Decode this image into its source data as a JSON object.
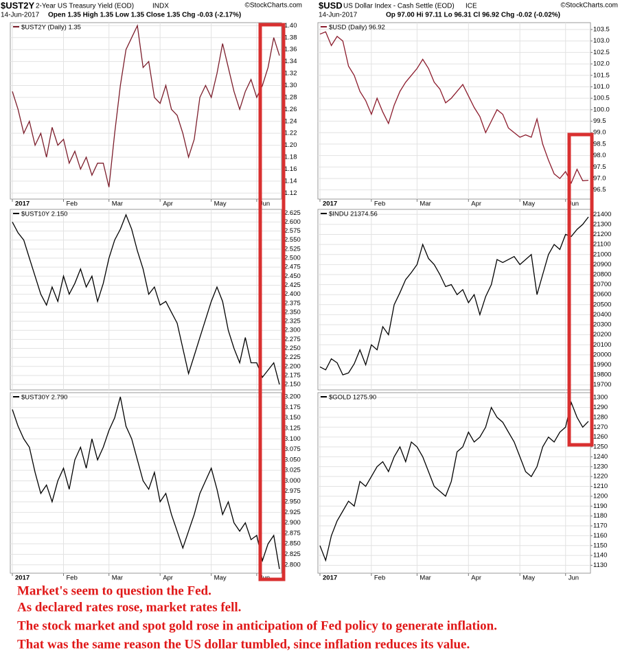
{
  "headers": [
    {
      "symbol": "$UST2Y",
      "name": "2-Year US Treasury Yield (EOD)",
      "exchange": "INDX",
      "source": "©StockCharts.com",
      "date": "14-Jun-2017",
      "quote": "Open 1.35  High 1.35  Low 1.35  Close 1.35  Chg -0.03 (-2.17%)"
    },
    {
      "symbol": "$USD",
      "name": "US Dollar Index - Cash Settle (EOD)",
      "exchange": "ICE",
      "source": "©StockCharts.com",
      "date": "14-Jun-2017",
      "quote": "Op 97.00  Hi 97.11  Lo 96.31  Cl 96.92  Chg -0.02 (-0.02%)"
    }
  ],
  "chart_data": [
    {
      "type": "line",
      "title": "$UST2Y (Daily) 1.35",
      "color": "#7b1c2a",
      "grid": true,
      "categories": [
        "2017",
        null,
        null,
        null,
        null,
        null,
        null,
        null,
        null,
        "Feb",
        null,
        null,
        null,
        null,
        null,
        null,
        null,
        "Mar",
        null,
        null,
        null,
        null,
        null,
        null,
        null,
        null,
        "Apr",
        null,
        null,
        null,
        null,
        null,
        null,
        null,
        null,
        "May",
        null,
        null,
        null,
        null,
        null,
        null,
        null,
        "Jun",
        null,
        null,
        null,
        null
      ],
      "values": [
        1.29,
        1.26,
        1.22,
        1.24,
        1.2,
        1.22,
        1.18,
        1.23,
        1.2,
        1.21,
        1.17,
        1.19,
        1.16,
        1.18,
        1.15,
        1.17,
        1.17,
        1.13,
        1.22,
        1.3,
        1.36,
        1.38,
        1.4,
        1.33,
        1.34,
        1.28,
        1.27,
        1.3,
        1.26,
        1.25,
        1.22,
        1.18,
        1.21,
        1.28,
        1.3,
        1.28,
        1.32,
        1.37,
        1.33,
        1.29,
        1.26,
        1.29,
        1.31,
        1.28,
        1.3,
        1.33,
        1.38,
        1.35
      ],
      "ylim": [
        1.11,
        1.405
      ],
      "yticks": [
        1.12,
        1.14,
        1.16,
        1.18,
        {
          "value": 1.2,
          "label": "1.20"
        },
        1.22,
        1.24,
        1.26,
        1.28,
        {
          "value": 1.3,
          "label": "1.30"
        },
        1.32,
        1.34,
        1.36,
        1.38,
        {
          "value": 1.4,
          "label": "1.40"
        }
      ]
    },
    {
      "type": "line",
      "title": "$UST10Y 2.150",
      "color": "#000000",
      "grid": true,
      "values": [
        2.6,
        2.57,
        2.55,
        2.5,
        2.45,
        2.4,
        2.37,
        2.42,
        2.38,
        2.45,
        2.4,
        2.43,
        2.47,
        2.42,
        2.45,
        2.38,
        2.43,
        2.5,
        2.55,
        2.58,
        2.62,
        2.58,
        2.52,
        2.47,
        2.4,
        2.42,
        2.37,
        2.38,
        2.35,
        2.32,
        2.25,
        2.18,
        2.23,
        2.28,
        2.33,
        2.38,
        2.42,
        2.38,
        2.3,
        2.25,
        2.21,
        2.28,
        2.21,
        2.21,
        2.17,
        2.19,
        2.21,
        2.15
      ],
      "ylim": [
        2.135,
        2.635
      ],
      "yticks": [
        {
          "value": 2.15,
          "label": "2.150"
        },
        2.175,
        {
          "value": 2.2,
          "label": "2.200"
        },
        2.225,
        {
          "value": 2.25,
          "label": "2.250"
        },
        2.275,
        {
          "value": 2.3,
          "label": "2.300"
        },
        2.325,
        {
          "value": 2.35,
          "label": "2.350"
        },
        2.375,
        {
          "value": 2.4,
          "label": "2.400"
        },
        2.425,
        {
          "value": 2.45,
          "label": "2.450"
        },
        2.475,
        {
          "value": 2.5,
          "label": "2.500"
        },
        2.525,
        {
          "value": 2.55,
          "label": "2.550"
        },
        2.575,
        {
          "value": 2.6,
          "label": "2.600"
        },
        2.625
      ]
    },
    {
      "type": "line",
      "title": "$UST30Y 2.790",
      "color": "#000000",
      "grid": true,
      "categories": [
        "2017",
        null,
        null,
        null,
        null,
        null,
        null,
        null,
        null,
        "Feb",
        null,
        null,
        null,
        null,
        null,
        null,
        null,
        "Mar",
        null,
        null,
        null,
        null,
        null,
        null,
        null,
        null,
        "Apr",
        null,
        null,
        null,
        null,
        null,
        null,
        null,
        null,
        "May",
        null,
        null,
        null,
        null,
        null,
        null,
        null,
        "Jun",
        null,
        null,
        null,
        null
      ],
      "values": [
        3.17,
        3.13,
        3.1,
        3.08,
        3.02,
        2.97,
        2.99,
        2.95,
        3.0,
        3.03,
        2.98,
        3.05,
        3.08,
        3.03,
        3.1,
        3.05,
        3.08,
        3.12,
        3.15,
        3.2,
        3.13,
        3.1,
        3.05,
        3.0,
        2.98,
        3.02,
        2.95,
        2.97,
        2.92,
        2.88,
        2.84,
        2.88,
        2.92,
        2.97,
        3.0,
        3.03,
        2.98,
        2.92,
        2.95,
        2.9,
        2.88,
        2.9,
        2.86,
        2.87,
        2.81,
        2.85,
        2.87,
        2.79
      ],
      "ylim": [
        2.78,
        3.21
      ],
      "yticks": [
        {
          "value": 2.8,
          "label": "2.800"
        },
        2.825,
        {
          "value": 2.85,
          "label": "2.850"
        },
        2.875,
        {
          "value": 2.9,
          "label": "2.900"
        },
        2.925,
        {
          "value": 2.95,
          "label": "2.950"
        },
        2.975,
        {
          "value": 3.0,
          "label": "3.000"
        },
        3.025,
        {
          "value": 3.05,
          "label": "3.050"
        },
        3.075,
        {
          "value": 3.1,
          "label": "3.100"
        },
        3.125,
        {
          "value": 3.15,
          "label": "3.150"
        },
        3.175,
        {
          "value": 3.2,
          "label": "3.200"
        }
      ]
    },
    {
      "type": "line",
      "title": "$USD (Daily) 96.92",
      "color": "#8b1a2b",
      "grid": true,
      "categories": [
        "2017",
        null,
        null,
        null,
        null,
        null,
        null,
        null,
        null,
        "Feb",
        null,
        null,
        null,
        null,
        null,
        null,
        null,
        "Mar",
        null,
        null,
        null,
        null,
        null,
        null,
        null,
        null,
        "Apr",
        null,
        null,
        null,
        null,
        null,
        null,
        null,
        null,
        "May",
        null,
        null,
        null,
        null,
        null,
        null,
        null,
        "Jun",
        null,
        null,
        null,
        null
      ],
      "values": [
        103.3,
        103.4,
        102.8,
        103.2,
        103.0,
        101.9,
        101.5,
        100.8,
        100.4,
        99.8,
        100.5,
        99.9,
        99.4,
        100.2,
        100.8,
        101.2,
        101.5,
        101.8,
        102.2,
        101.8,
        101.2,
        100.9,
        100.3,
        100.5,
        100.8,
        101.1,
        100.6,
        100.1,
        99.7,
        99.0,
        99.5,
        100.0,
        99.8,
        99.2,
        99.0,
        98.8,
        98.9,
        98.8,
        99.6,
        98.5,
        97.8,
        97.2,
        97.0,
        97.3,
        96.8,
        97.4,
        96.9,
        96.92
      ],
      "ylim": [
        96.1,
        103.8
      ],
      "yticks": [
        96.5,
        {
          "value": 97,
          "label": "97.0"
        },
        97.5,
        {
          "value": 98,
          "label": "98.0"
        },
        98.5,
        {
          "value": 99,
          "label": "99.0"
        },
        99.5,
        {
          "value": 100,
          "label": "100.0"
        },
        100.5,
        {
          "value": 101,
          "label": "101.0"
        },
        101.5,
        {
          "value": 102,
          "label": "102.0"
        },
        102.5,
        {
          "value": 103,
          "label": "103.0"
        },
        103.5
      ]
    },
    {
      "type": "line",
      "title": "$INDU 21374.56",
      "color": "#000000",
      "grid": true,
      "values": [
        19880,
        19850,
        19960,
        19920,
        19800,
        19820,
        19910,
        20050,
        19900,
        20100,
        20050,
        20280,
        20200,
        20500,
        20620,
        20750,
        20820,
        20900,
        21100,
        20960,
        20900,
        20800,
        20680,
        20700,
        20600,
        20650,
        20520,
        20600,
        20400,
        20580,
        20700,
        20950,
        20920,
        20950,
        20980,
        20900,
        20950,
        21000,
        20600,
        20800,
        21000,
        21100,
        21050,
        21200,
        21180,
        21250,
        21300,
        21374.56
      ],
      "ylim": [
        19650,
        21450
      ],
      "yticks": [
        19700,
        19800,
        19900,
        20000,
        20100,
        20200,
        20300,
        20400,
        20500,
        20600,
        20700,
        20800,
        20900,
        21000,
        21100,
        21200,
        21300,
        21400
      ]
    },
    {
      "type": "line",
      "title": "$GOLD 1275.90",
      "color": "#000000",
      "grid": true,
      "categories": [
        "2017",
        null,
        null,
        null,
        null,
        null,
        null,
        null,
        null,
        "Feb",
        null,
        null,
        null,
        null,
        null,
        null,
        null,
        "Mar",
        null,
        null,
        null,
        null,
        null,
        null,
        null,
        null,
        "Apr",
        null,
        null,
        null,
        null,
        null,
        null,
        null,
        null,
        "May",
        null,
        null,
        null,
        null,
        null,
        null,
        null,
        "Jun",
        null,
        null,
        null,
        null
      ],
      "values": [
        1150,
        1135,
        1160,
        1175,
        1185,
        1195,
        1190,
        1215,
        1210,
        1220,
        1230,
        1235,
        1225,
        1240,
        1250,
        1235,
        1255,
        1250,
        1240,
        1225,
        1210,
        1205,
        1200,
        1215,
        1245,
        1250,
        1265,
        1255,
        1260,
        1270,
        1290,
        1280,
        1275,
        1265,
        1255,
        1240,
        1225,
        1220,
        1230,
        1250,
        1260,
        1255,
        1265,
        1270,
        1295,
        1280,
        1270,
        1275.9
      ],
      "ylim": [
        1122,
        1305
      ],
      "yticks": [
        1130,
        1140,
        1150,
        1160,
        1170,
        1180,
        1190,
        1200,
        1210,
        1220,
        1230,
        1240,
        1250,
        1260,
        1270,
        1280,
        1290,
        1300
      ]
    }
  ],
  "caption": [
    "Market's seem to question the Fed.",
    "As declared rates rose, market rates fell.",
    "The stock market and spot gold rose in anticipation of Fed policy to generate inflation.",
    "That was the same reason the US dollar tumbled, since inflation reduces its value."
  ]
}
